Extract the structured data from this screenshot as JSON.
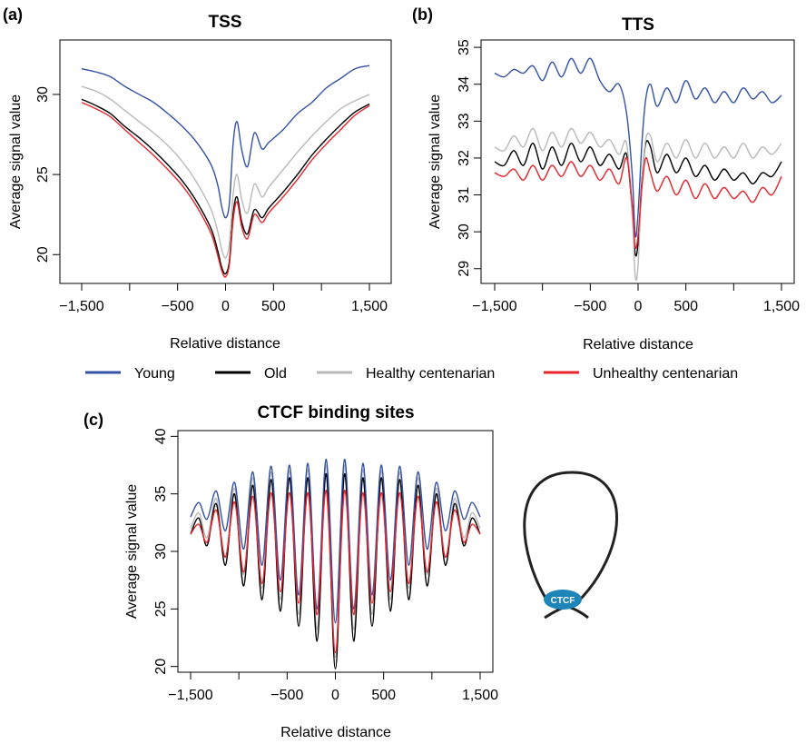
{
  "colors": {
    "young": "#3452a4",
    "old": "#000000",
    "healthy": "#b9b9b9",
    "unhealthy": "#e8242b"
  },
  "legend": [
    {
      "key": "young",
      "label": "Young"
    },
    {
      "key": "old",
      "label": "Old"
    },
    {
      "key": "healthy",
      "label": "Healthy centenarian"
    },
    {
      "key": "unhealthy",
      "label": "Unhealthy centenarian"
    }
  ],
  "loop_diagram": {
    "label": "CTCF",
    "color": "#1d85b8"
  },
  "chart_data": [
    {
      "panel": "(a)",
      "type": "line",
      "title": "TSS",
      "xlabel": "Relative distance",
      "ylabel": "Average signal value",
      "xlim": [
        -1500,
        1500
      ],
      "ylim": [
        18.2,
        33.4
      ],
      "xticks": [
        -1500,
        -1000,
        -500,
        0,
        500,
        1000,
        1500
      ],
      "xticklabels": [
        "−1,500",
        "",
        "−500",
        "0",
        "500",
        "",
        "1,500"
      ],
      "yticks": [
        20,
        25,
        30
      ],
      "yticklabels": [
        "20",
        "25",
        "30"
      ],
      "series": [
        {
          "key": "young",
          "name": "Young",
          "x": [
            -1500,
            -1350,
            -1200,
            -1050,
            -900,
            -750,
            -600,
            -450,
            -300,
            -150,
            -80,
            -40,
            0,
            40,
            80,
            120,
            170,
            230,
            300,
            380,
            450,
            600,
            750,
            900,
            1050,
            1200,
            1350,
            1500
          ],
          "y": [
            31.6,
            31.4,
            31.1,
            30.5,
            30.0,
            29.5,
            28.8,
            28.0,
            27.0,
            25.6,
            24.3,
            23.0,
            22.3,
            23.2,
            27.0,
            28.3,
            26.5,
            25.5,
            27.6,
            26.6,
            27.0,
            27.8,
            28.8,
            29.5,
            30.4,
            31.0,
            31.6,
            31.8
          ]
        },
        {
          "key": "old",
          "name": "Old",
          "x": [
            -1500,
            -1350,
            -1200,
            -1050,
            -900,
            -750,
            -600,
            -450,
            -300,
            -150,
            -80,
            -40,
            0,
            40,
            80,
            120,
            170,
            230,
            300,
            380,
            450,
            600,
            750,
            900,
            1050,
            1200,
            1350,
            1500
          ],
          "y": [
            29.7,
            29.3,
            28.8,
            28.0,
            27.3,
            26.5,
            25.6,
            24.6,
            23.3,
            21.6,
            20.2,
            19.2,
            18.8,
            19.6,
            22.6,
            23.6,
            22.0,
            21.3,
            22.8,
            22.3,
            22.9,
            23.9,
            25.0,
            26.2,
            27.2,
            28.1,
            28.9,
            29.4
          ]
        },
        {
          "key": "healthy",
          "name": "Healthy centenarian",
          "x": [
            -1500,
            -1350,
            -1200,
            -1050,
            -900,
            -750,
            -600,
            -450,
            -300,
            -150,
            -80,
            -40,
            0,
            40,
            80,
            120,
            170,
            230,
            300,
            380,
            450,
            600,
            750,
            900,
            1050,
            1200,
            1350,
            1500
          ],
          "y": [
            30.5,
            30.2,
            29.7,
            29.0,
            28.3,
            27.6,
            26.8,
            25.8,
            24.5,
            22.8,
            21.4,
            20.3,
            19.8,
            20.7,
            23.8,
            25.0,
            23.4,
            22.6,
            24.4,
            23.6,
            24.2,
            25.3,
            26.4,
            27.4,
            28.3,
            29.1,
            29.6,
            30.0
          ]
        },
        {
          "key": "unhealthy",
          "name": "Unhealthy centenarian",
          "x": [
            -1500,
            -1350,
            -1200,
            -1050,
            -900,
            -750,
            -600,
            -450,
            -300,
            -150,
            -80,
            -40,
            0,
            40,
            80,
            120,
            170,
            230,
            300,
            380,
            450,
            600,
            750,
            900,
            1050,
            1200,
            1350,
            1500
          ],
          "y": [
            29.5,
            29.1,
            28.6,
            27.8,
            27.0,
            26.2,
            25.3,
            24.3,
            23.0,
            21.3,
            19.9,
            19.0,
            18.6,
            19.4,
            22.2,
            23.3,
            21.7,
            21.0,
            22.5,
            22.0,
            22.6,
            23.6,
            24.7,
            25.9,
            26.9,
            27.8,
            28.7,
            29.3
          ]
        }
      ]
    },
    {
      "panel": "(b)",
      "type": "line",
      "title": "TTS",
      "xlabel": "Relative distance",
      "ylabel": "Average signal value",
      "xlim": [
        -1500,
        1500
      ],
      "ylim": [
        28.6,
        35.2
      ],
      "xticks": [
        -1500,
        -1000,
        -500,
        0,
        500,
        1000,
        1500
      ],
      "xticklabels": [
        "−1,500",
        "",
        "−500",
        "0",
        "500",
        "",
        "1,500"
      ],
      "yticks": [
        29,
        30,
        31,
        32,
        33,
        34,
        35
      ],
      "yticklabels": [
        "29",
        "30",
        "31",
        "32",
        "33",
        "34",
        "35"
      ],
      "series": [
        {
          "key": "young",
          "name": "Young",
          "x": [
            -1500,
            -1400,
            -1300,
            -1200,
            -1100,
            -1000,
            -900,
            -800,
            -700,
            -600,
            -500,
            -400,
            -300,
            -200,
            -120,
            -60,
            -30,
            0,
            40,
            80,
            130,
            200,
            300,
            400,
            500,
            600,
            700,
            800,
            900,
            1000,
            1100,
            1200,
            1300,
            1400,
            1500
          ],
          "y": [
            34.3,
            34.2,
            34.4,
            34.3,
            34.5,
            34.1,
            34.6,
            34.2,
            34.7,
            34.3,
            34.7,
            34.1,
            33.8,
            34.0,
            33.2,
            31.5,
            29.9,
            30.5,
            32.4,
            33.6,
            34.0,
            33.4,
            33.9,
            33.5,
            34.1,
            33.6,
            33.9,
            33.5,
            33.8,
            33.5,
            33.9,
            33.6,
            33.8,
            33.5,
            33.7
          ]
        },
        {
          "key": "old",
          "name": "Old",
          "x": [
            -1500,
            -1400,
            -1300,
            -1200,
            -1100,
            -1000,
            -900,
            -800,
            -700,
            -600,
            -500,
            -400,
            -300,
            -200,
            -120,
            -60,
            -30,
            0,
            40,
            80,
            130,
            200,
            300,
            400,
            500,
            600,
            700,
            800,
            900,
            1000,
            1100,
            1200,
            1300,
            1400,
            1500
          ],
          "y": [
            31.9,
            31.8,
            32.2,
            31.8,
            32.4,
            31.7,
            32.3,
            31.8,
            32.4,
            31.9,
            32.3,
            31.8,
            32.1,
            31.7,
            32.1,
            30.5,
            29.4,
            29.7,
            31.4,
            32.4,
            32.3,
            31.6,
            32.1,
            31.6,
            32.0,
            31.5,
            31.8,
            31.4,
            31.7,
            31.4,
            31.6,
            31.3,
            31.6,
            31.5,
            31.9
          ]
        },
        {
          "key": "healthy",
          "name": "Healthy centenarian",
          "x": [
            -1500,
            -1400,
            -1300,
            -1200,
            -1100,
            -1000,
            -900,
            -800,
            -700,
            -600,
            -500,
            -400,
            -300,
            -200,
            -120,
            -60,
            -30,
            0,
            40,
            80,
            130,
            200,
            300,
            400,
            500,
            600,
            700,
            800,
            900,
            1000,
            1100,
            1200,
            1300,
            1400,
            1500
          ],
          "y": [
            32.3,
            32.2,
            32.6,
            32.3,
            32.8,
            32.2,
            32.7,
            32.3,
            32.8,
            32.4,
            32.7,
            32.3,
            32.5,
            32.1,
            32.4,
            30.4,
            28.8,
            29.1,
            31.3,
            32.5,
            32.6,
            31.9,
            32.4,
            32.0,
            32.5,
            32.0,
            32.4,
            32.0,
            32.3,
            32.0,
            32.4,
            32.0,
            32.3,
            32.1,
            32.4
          ]
        },
        {
          "key": "unhealthy",
          "name": "Unhealthy centenarian",
          "x": [
            -1500,
            -1400,
            -1300,
            -1200,
            -1100,
            -1000,
            -900,
            -800,
            -700,
            -600,
            -500,
            -400,
            -300,
            -200,
            -120,
            -60,
            -30,
            0,
            40,
            80,
            130,
            200,
            300,
            400,
            500,
            600,
            700,
            800,
            900,
            1000,
            1100,
            1200,
            1300,
            1400,
            1500
          ],
          "y": [
            31.6,
            31.5,
            31.7,
            31.4,
            31.8,
            31.4,
            31.8,
            31.5,
            31.9,
            31.5,
            31.8,
            31.4,
            31.7,
            31.3,
            32.0,
            30.7,
            29.6,
            29.9,
            31.2,
            32.0,
            31.6,
            31.1,
            31.5,
            31.0,
            31.4,
            30.9,
            31.3,
            30.9,
            31.2,
            30.9,
            31.1,
            30.8,
            31.2,
            31.0,
            31.5
          ]
        }
      ]
    },
    {
      "panel": "(c)",
      "type": "line",
      "title": "CTCF binding sites",
      "xlabel": "Relative distance",
      "ylabel": "Average signal value",
      "xlim": [
        -1500,
        1500
      ],
      "ylim": [
        19.5,
        40.5
      ],
      "xticks": [
        -1500,
        -1000,
        -500,
        0,
        500,
        1000,
        1500
      ],
      "xticklabels": [
        "−1,500",
        "",
        "−500",
        "0",
        "500",
        "",
        "1,500"
      ],
      "yticks": [
        20,
        25,
        30,
        35,
        40
      ],
      "yticklabels": [
        "20",
        "25",
        "30",
        "35",
        "40"
      ],
      "oscillation": {
        "period": 190,
        "x": [
          -1500,
          -1330,
          -1140,
          -950,
          -760,
          -570,
          -380,
          -190,
          0,
          190,
          380,
          570,
          760,
          950,
          1140,
          1330,
          1500
        ],
        "series": [
          {
            "key": "young",
            "name": "Young",
            "peaks": [
              33.5,
              35.0,
              35.5,
              36.5,
              37.3,
              37.5,
              37.5,
              37.8,
              38.2,
              37.8,
              37.5,
              37.5,
              37.3,
              36.5,
              35.5,
              35.0,
              33.5
            ],
            "troughs": [
              33.0,
              32.8,
              31.8,
              30.2,
              28.8,
              27.5,
              26.2,
              25.0,
              23.8,
              25.0,
              26.2,
              27.5,
              28.8,
              30.2,
              31.8,
              32.8,
              33.0
            ]
          },
          {
            "key": "old",
            "name": "Old",
            "peaks": [
              32.0,
              33.8,
              34.5,
              35.5,
              36.0,
              36.5,
              36.3,
              36.5,
              37.0,
              36.5,
              36.3,
              36.5,
              36.0,
              35.5,
              34.5,
              33.8,
              32.0
            ],
            "troughs": [
              31.5,
              30.5,
              28.8,
              27.0,
              25.8,
              24.8,
              23.5,
              22.2,
              19.8,
              22.2,
              23.5,
              24.8,
              25.8,
              27.0,
              28.8,
              30.5,
              31.5
            ]
          },
          {
            "key": "healthy",
            "name": "Healthy centenarian",
            "peaks": [
              32.5,
              34.2,
              35.0,
              36.0,
              36.8,
              37.0,
              37.0,
              37.2,
              37.8,
              37.2,
              37.0,
              37.0,
              36.8,
              36.0,
              35.0,
              34.2,
              32.5
            ],
            "troughs": [
              32.0,
              31.2,
              29.5,
              28.0,
              26.8,
              25.8,
              24.5,
              23.2,
              20.8,
              23.2,
              24.5,
              25.8,
              26.8,
              28.0,
              29.5,
              31.2,
              32.0
            ]
          },
          {
            "key": "unhealthy",
            "name": "Unhealthy centenarian",
            "peaks": [
              31.5,
              33.2,
              34.0,
              34.6,
              35.0,
              35.2,
              35.0,
              35.2,
              35.4,
              35.2,
              35.0,
              35.2,
              35.0,
              34.6,
              34.0,
              33.2,
              31.5
            ],
            "troughs": [
              31.5,
              30.8,
              29.5,
              28.2,
              27.2,
              26.5,
              25.5,
              24.5,
              21.2,
              24.5,
              25.5,
              26.5,
              27.2,
              28.2,
              29.5,
              30.8,
              31.5
            ]
          }
        ]
      }
    }
  ]
}
